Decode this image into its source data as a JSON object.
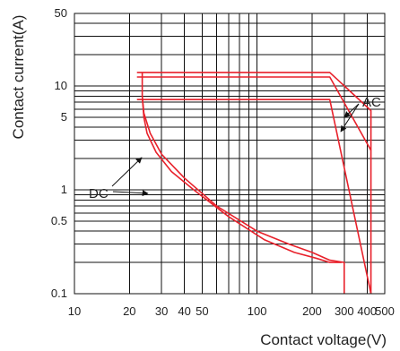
{
  "chart_data": {
    "type": "line",
    "title": "",
    "xlabel": "Contact voltage(V)",
    "ylabel": "Contact current(A)",
    "xscale": "log",
    "yscale": "log",
    "xlim": [
      10,
      500
    ],
    "ylim": [
      0.1,
      50
    ],
    "grid": true,
    "legend": "none",
    "xticks": [
      10,
      20,
      30,
      40,
      50,
      100,
      200,
      300,
      400,
      500
    ],
    "xtick_labels": [
      "10",
      "20",
      "30",
      "40",
      "50",
      "100",
      "200",
      "300",
      "400",
      "500"
    ],
    "yticks": [
      0.1,
      0.5,
      1,
      5,
      10,
      50
    ],
    "ytick_labels": [
      "0.1",
      "0.5",
      "1",
      "5",
      "10",
      "50"
    ],
    "color": "#e8212b",
    "series": [
      {
        "name": "AC",
        "x": [
          22,
          250,
          420,
          420
        ],
        "y": [
          13.5,
          13.5,
          5.8,
          0.1
        ]
      },
      {
        "name": "AC",
        "x": [
          22,
          250,
          420
        ],
        "y": [
          12.2,
          12.2,
          2.4
        ]
      },
      {
        "name": "AC",
        "x": [
          22,
          250,
          420
        ],
        "y": [
          7.4,
          7.4,
          0.1
        ]
      },
      {
        "name": "DC",
        "x": [
          23.5,
          23.5,
          24,
          26,
          30,
          40,
          60,
          100,
          150,
          200,
          250,
          300,
          300
        ],
        "y": [
          13.5,
          8,
          5.5,
          3.5,
          2.2,
          1.3,
          0.7,
          0.4,
          0.3,
          0.25,
          0.21,
          0.2,
          0.1
        ]
      },
      {
        "name": "DC",
        "x": [
          23.5,
          24,
          25,
          28,
          34,
          45,
          70,
          110,
          160,
          210,
          250,
          290
        ],
        "y": [
          8,
          5,
          3.5,
          2.3,
          1.5,
          1.0,
          0.55,
          0.33,
          0.25,
          0.22,
          0.2,
          0.2
        ]
      }
    ],
    "annotations": [
      {
        "text": "AC"
      },
      {
        "text": "DC"
      }
    ]
  }
}
